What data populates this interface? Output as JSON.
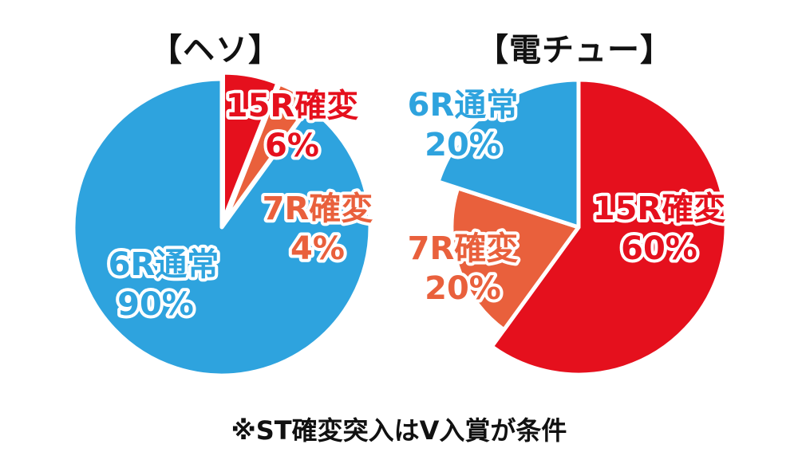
{
  "colors": {
    "blue": "#2ea3de",
    "red": "#e5101d",
    "orange": "#e9603c",
    "outline": "#ffffff"
  },
  "chart_data": [
    {
      "type": "pie",
      "title": "【ヘソ】",
      "slices": [
        {
          "label": "15R確変",
          "value": 6,
          "value_label": "6%",
          "color": "#e5101d"
        },
        {
          "label": "7R確変",
          "value": 4,
          "value_label": "4%",
          "color": "#e9603c"
        },
        {
          "label": "6R通常",
          "value": 90,
          "value_label": "90%",
          "color": "#2ea3de"
        }
      ]
    },
    {
      "type": "pie",
      "title": "【電チュー】",
      "slices": [
        {
          "label": "15R確変",
          "value": 60,
          "value_label": "60%",
          "color": "#e5101d"
        },
        {
          "label": "7R確変",
          "value": 20,
          "value_label": "20%",
          "color": "#e9603c"
        },
        {
          "label": "6R通常",
          "value": 20,
          "value_label": "20%",
          "color": "#2ea3de"
        }
      ]
    }
  ],
  "footnote": "※ST確変突入はV入賞が条件"
}
